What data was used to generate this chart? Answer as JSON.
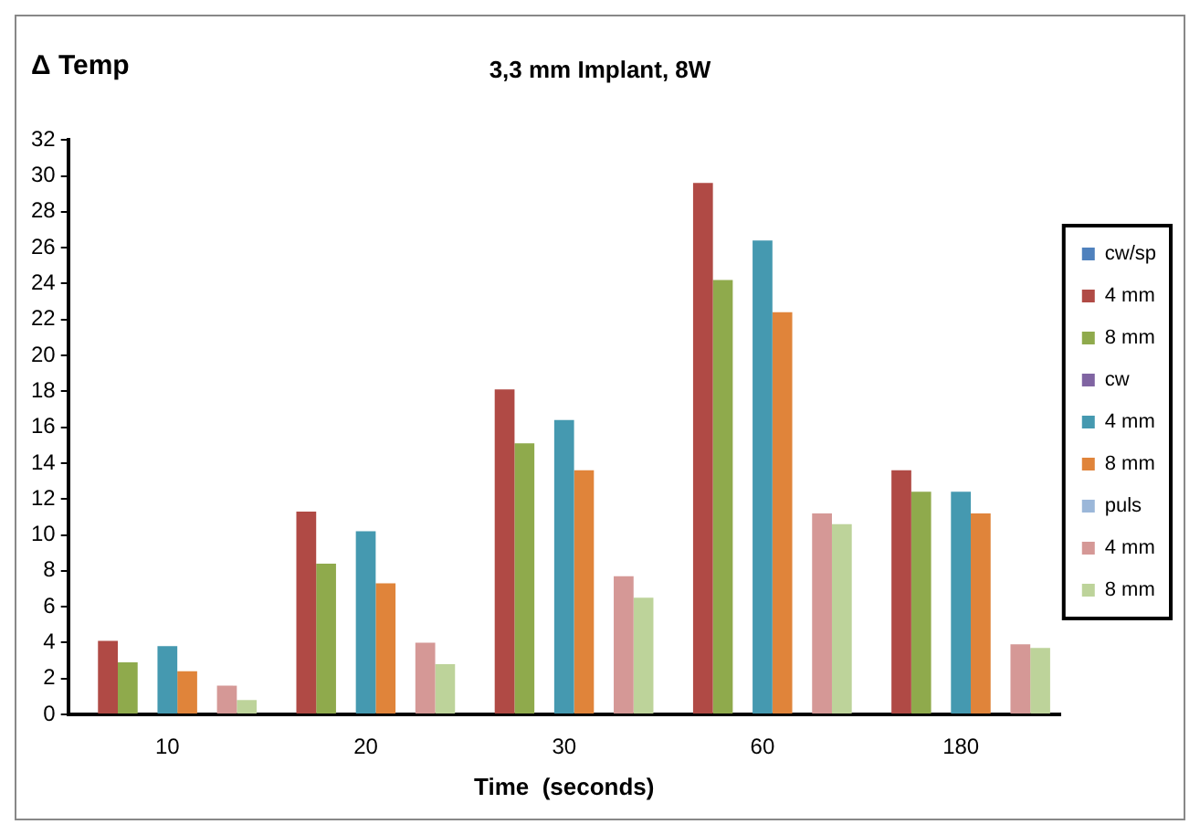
{
  "chart_data": {
    "type": "bar",
    "title": "3,3 mm Implant, 8W",
    "xlabel": "Time  (seconds)",
    "ylabel": "Δ Temp",
    "categories": [
      "10",
      "20",
      "30",
      "60",
      "180"
    ],
    "series": [
      {
        "name": "cw/sp",
        "color": "#4f81bd",
        "values": [
          null,
          null,
          null,
          null,
          null
        ]
      },
      {
        "name": "4 mm",
        "color": "#b04a45",
        "values": [
          4.1,
          11.3,
          18.1,
          29.6,
          13.6
        ]
      },
      {
        "name": "8 mm",
        "color": "#8faa4c",
        "values": [
          2.9,
          8.4,
          15.1,
          24.2,
          12.4
        ]
      },
      {
        "name": "cw",
        "color": "#8064a2",
        "values": [
          null,
          null,
          null,
          null,
          null
        ]
      },
      {
        "name": "4 mm",
        "color": "#4599b0",
        "values": [
          3.8,
          10.2,
          16.4,
          26.4,
          12.4
        ]
      },
      {
        "name": "8 mm",
        "color": "#e0843a",
        "values": [
          2.4,
          7.3,
          13.6,
          22.4,
          11.2
        ]
      },
      {
        "name": "puls",
        "color": "#9bb7d9",
        "values": [
          null,
          null,
          null,
          null,
          null
        ]
      },
      {
        "name": "4 mm",
        "color": "#d59896",
        "values": [
          1.6,
          4.0,
          7.7,
          11.2,
          3.9
        ]
      },
      {
        "name": "8 mm",
        "color": "#bdd39a",
        "values": [
          0.8,
          2.8,
          6.5,
          10.6,
          3.7
        ]
      }
    ],
    "ylim": [
      0,
      32
    ],
    "yticks": [
      0,
      2,
      4,
      6,
      8,
      10,
      12,
      14,
      16,
      18,
      20,
      22,
      24,
      26,
      28,
      30,
      32
    ],
    "grid": false,
    "legend": "right"
  }
}
